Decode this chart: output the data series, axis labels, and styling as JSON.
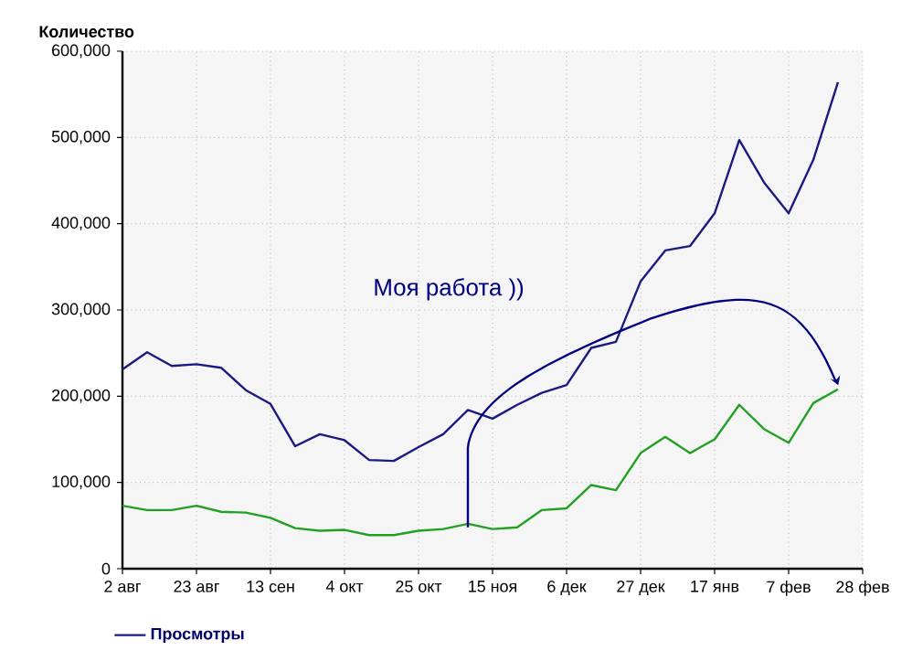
{
  "chart_data": {
    "type": "line",
    "ylabel": "Количество",
    "categories": [
      "2 авг",
      null,
      null,
      "23 авг",
      null,
      null,
      "13 сен",
      null,
      null,
      "4 окт",
      null,
      null,
      "25 окт",
      null,
      null,
      "15 ноя",
      null,
      null,
      "6 дек",
      null,
      null,
      "27 дек",
      null,
      null,
      "17 янв",
      null,
      null,
      "7 фев",
      null,
      null,
      "28 фев"
    ],
    "series": [
      {
        "name": "Просмотры",
        "color": "#1a1a80",
        "values": [
          231000,
          251000,
          235000,
          237000,
          233000,
          207000,
          191000,
          142000,
          156000,
          149000,
          126000,
          125000,
          141000,
          156000,
          184000,
          174000,
          190000,
          204000,
          213000,
          256000,
          263000,
          333000,
          369000,
          374000,
          412000,
          497000,
          448000,
          412000,
          474000,
          564000,
          null
        ]
      },
      {
        "color": "#22a022",
        "values": [
          73000,
          68000,
          68000,
          73000,
          66000,
          65000,
          59000,
          47000,
          44000,
          45000,
          39000,
          39000,
          44000,
          46000,
          52000,
          46000,
          48000,
          68000,
          70000,
          97000,
          91000,
          134000,
          153000,
          134000,
          150000,
          190000,
          162000,
          146000,
          192000,
          208000,
          null
        ]
      }
    ],
    "ylim": [
      0,
      600000
    ],
    "yticks": [
      0,
      {
        "value": 100000,
        "label": "100,000"
      },
      {
        "value": 200000,
        "label": "200,000"
      },
      {
        "value": 300000,
        "label": "300,000"
      },
      {
        "value": 400000,
        "label": "400,000"
      },
      {
        "value": 500000,
        "label": "500,000"
      },
      {
        "value": 600000,
        "label": "600,000"
      }
    ],
    "annotations": [
      "Моя работа ))"
    ],
    "grid": true,
    "legend": "bottom left",
    "marker": "none",
    "line_style": "solid"
  }
}
